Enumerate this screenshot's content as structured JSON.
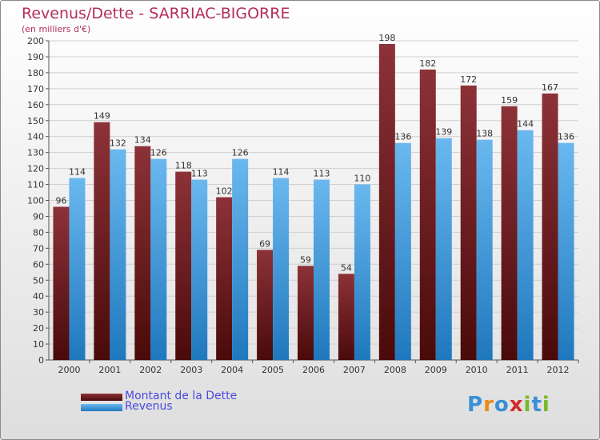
{
  "colors": {
    "title": "#b32d5e",
    "debt_dark": "#4a0a0a",
    "debt_light": "#8c3238",
    "revenue_dark": "#1f78bd",
    "revenue_light": "#6ab8ef",
    "legend_text": "#4a4ae0",
    "axis_text": "#333333",
    "grid": "#d0d0d0"
  },
  "logo": {
    "letters": [
      "P",
      "r",
      "o",
      "x",
      "i",
      "t",
      "i"
    ],
    "letter_colors": [
      "#3a8fd8",
      "#e88a1a",
      "#3a8fd8",
      "#d62a2a",
      "#7ab82a",
      "#3a8fd8",
      "#7ab82a"
    ]
  },
  "chart_data": {
    "type": "bar",
    "title": "Revenus/Dette - SARRIAC-BIGORRE",
    "subtitle": "(en milliers d'€)",
    "xlabel": "",
    "ylabel": "",
    "categories": [
      "2000",
      "2001",
      "2002",
      "2003",
      "2004",
      "2005",
      "2006",
      "2007",
      "2008",
      "2009",
      "2010",
      "2011",
      "2012"
    ],
    "series": [
      {
        "name": "Montant de la Dette",
        "values": [
          96,
          149,
          134,
          118,
          102,
          69,
          59,
          54,
          198,
          182,
          172,
          159,
          167
        ]
      },
      {
        "name": "Revenus",
        "values": [
          114,
          132,
          126,
          113,
          126,
          114,
          113,
          110,
          136,
          139,
          138,
          144,
          136
        ]
      }
    ],
    "ylim": [
      0,
      200
    ],
    "ytick_step": 10,
    "grid": true,
    "legend_position": "bottom-left"
  }
}
